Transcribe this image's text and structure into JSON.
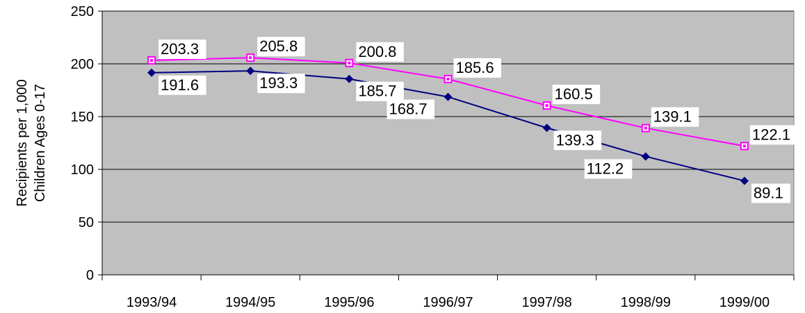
{
  "chart_data": {
    "type": "line",
    "categories": [
      "1993/94",
      "1994/95",
      "1995/96",
      "1996/97",
      "1997/98",
      "1998/99",
      "1999/00"
    ],
    "ylabel": [
      "Recipients per 1,000",
      "Children Ages 0-17"
    ],
    "ylim": [
      0,
      250
    ],
    "yticks": [
      0,
      50,
      100,
      150,
      200,
      250
    ],
    "grid": true,
    "series": [
      {
        "values": [
          203.3,
          205.8,
          200.8,
          185.6,
          160.5,
          139.1,
          122.1
        ],
        "labels": [
          "203.3",
          "205.8",
          "200.8",
          "185.6",
          "160.5",
          "139.1",
          "122.1"
        ],
        "color": "#ff00ff",
        "marker": "square"
      },
      {
        "values": [
          191.6,
          193.3,
          185.7,
          168.7,
          139.3,
          112.2,
          89.1
        ],
        "labels": [
          "191.6",
          "193.3",
          "185.7",
          "168.7",
          "139.3",
          "112.2",
          "89.1"
        ],
        "color": "#000080",
        "marker": "diamond"
      }
    ],
    "colors": {
      "plot_background": "#c0c0c0",
      "gridline": "#000000"
    }
  }
}
